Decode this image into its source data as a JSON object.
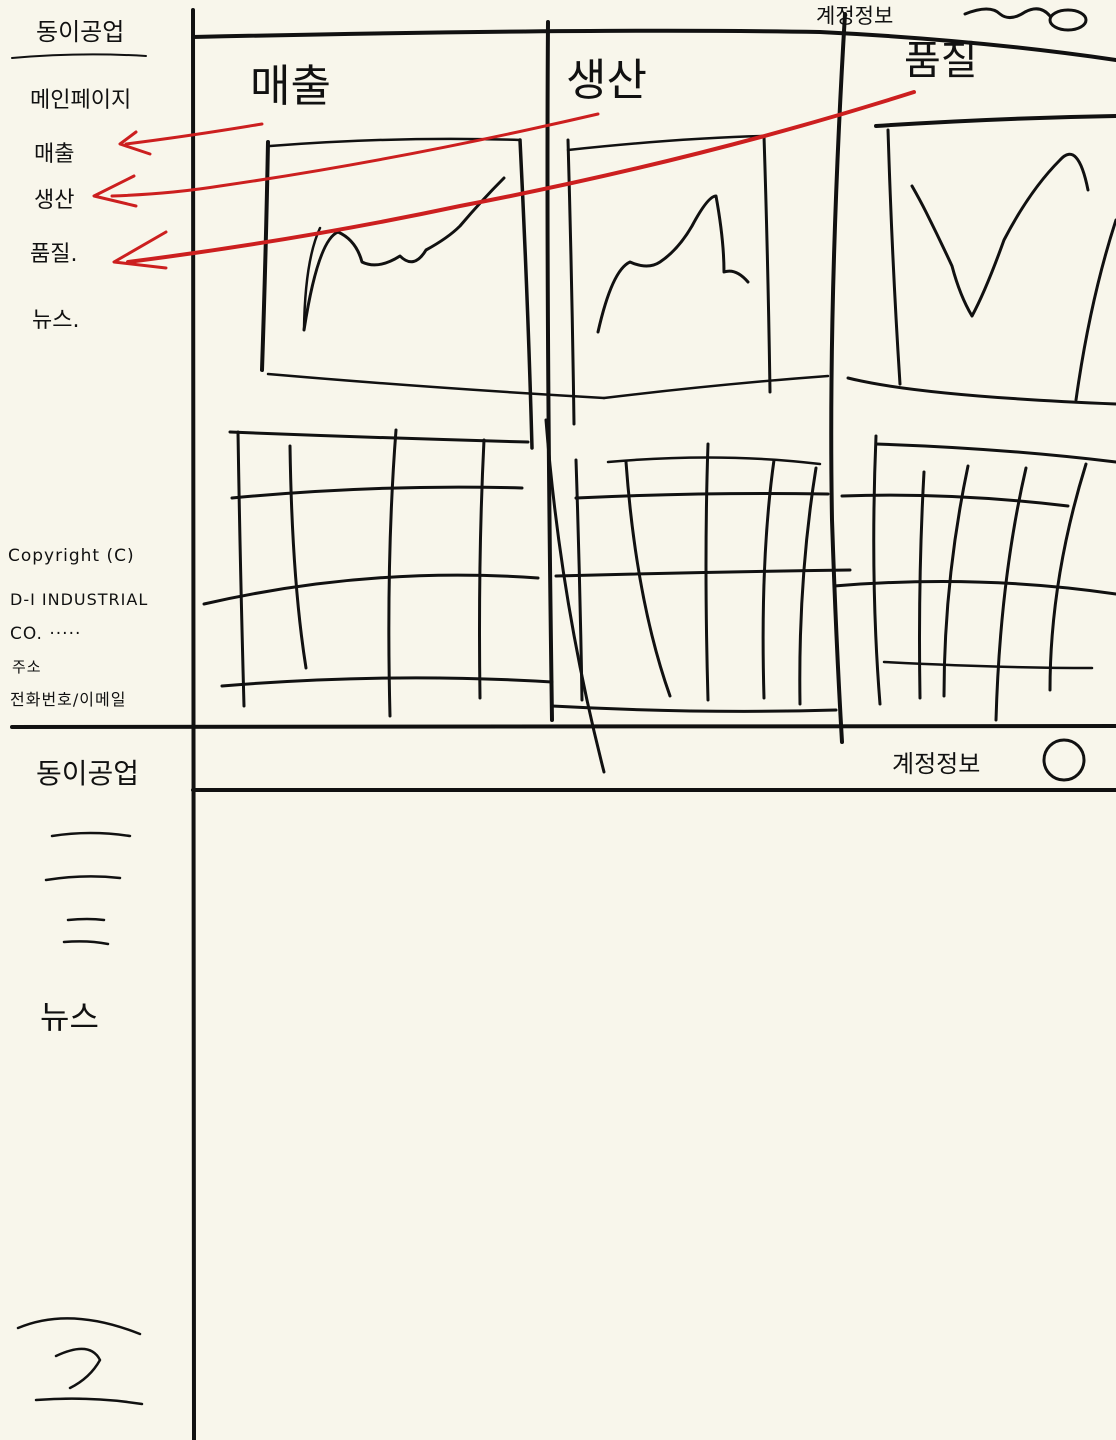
{
  "brand": "동이공업",
  "nav": {
    "items": [
      {
        "label": "메인페이지"
      },
      {
        "label": "매출"
      },
      {
        "label": "생산"
      },
      {
        "label": "품질."
      },
      {
        "label": "뉴스."
      }
    ]
  },
  "footer": {
    "lines": [
      "Copyright (C)",
      "D-I INDUSTRIAL",
      "CO. ·····",
      "주소",
      "전화번호/이메일"
    ]
  },
  "header": {
    "account_label": "계정정보"
  },
  "columns": [
    {
      "title": "매출"
    },
    {
      "title": "생산"
    },
    {
      "title": "품질"
    }
  ],
  "mobile": {
    "brand": "동이공업",
    "account_label": "계정정보",
    "nav_last": "뉴스"
  },
  "colors": {
    "ink": "#111111",
    "arrow": "#cc1f1f",
    "paper": "#f8f6eb"
  }
}
